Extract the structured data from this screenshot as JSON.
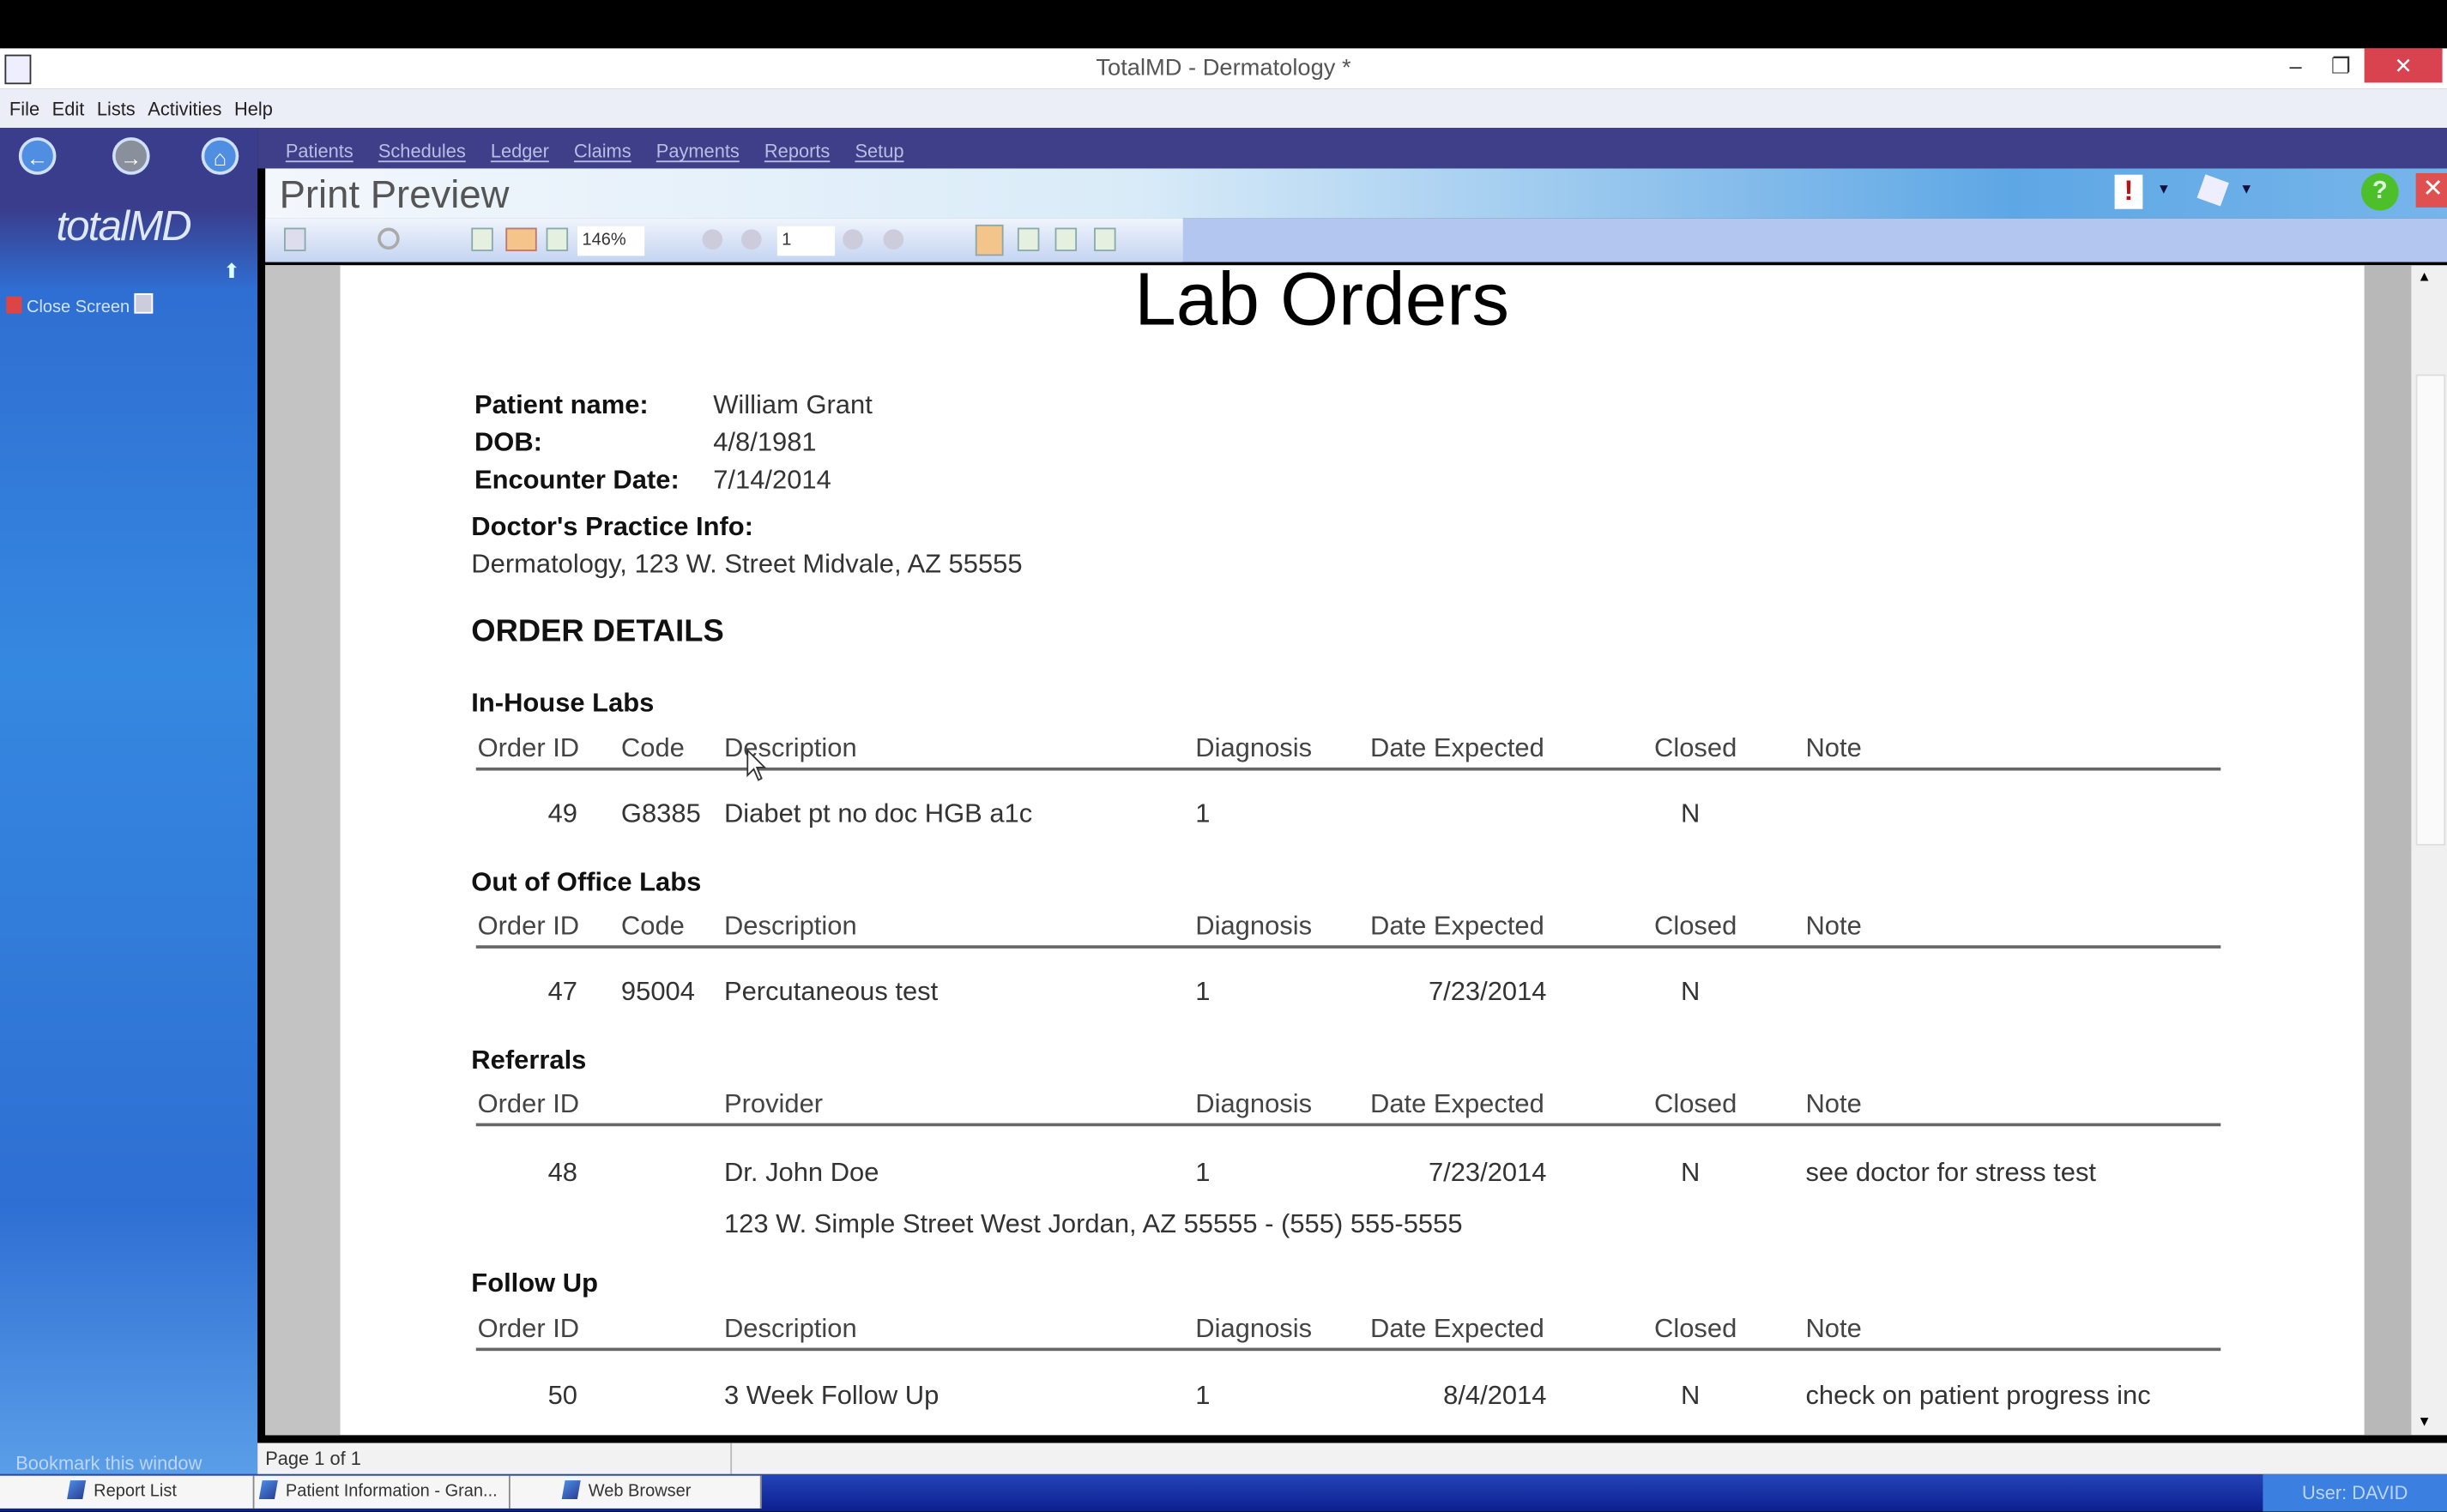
{
  "window": {
    "title": "TotalMD - Dermatology *",
    "minimize": "–",
    "restore": "❐",
    "close": "✕"
  },
  "menu": [
    "File",
    "Edit",
    "Lists",
    "Activities",
    "Help"
  ],
  "nav": [
    "Patients",
    "Schedules",
    "Ledger",
    "Claims",
    "Payments",
    "Reports",
    "Setup"
  ],
  "sidebar": {
    "logo": "totalMD",
    "close_screen": "Close Screen",
    "bookmark": "Bookmark this window"
  },
  "header": {
    "title": "Print Preview"
  },
  "toolbar": {
    "zoom": "146%",
    "page": "1"
  },
  "colors": {
    "nav": "#3e3f88",
    "close": "#d9434f",
    "help": "#4cbf2a"
  },
  "document": {
    "title": "Lab Orders",
    "patient_label": "Patient name:",
    "patient": "William Grant",
    "dob_label": "DOB:",
    "dob": "4/8/1981",
    "enc_label": "Encounter Date:",
    "enc": "7/14/2014",
    "practice_label": "Doctor's Practice Info:",
    "practice": "Dermatology, 123 W. Street  Midvale, AZ 55555",
    "order_details": "ORDER DETAILS",
    "inhouse": {
      "heading": "In-House Labs",
      "cols": [
        "Order ID",
        "Code",
        "Description",
        "Diagnosis",
        "Date Expected",
        "Closed",
        "Note"
      ],
      "rows": [
        {
          "id": "49",
          "code": "G8385",
          "desc": "Diabet pt no doc HGB a1c",
          "diag": "1",
          "date": "",
          "closed": "N",
          "note": ""
        }
      ]
    },
    "outoffice": {
      "heading": "Out of Office Labs",
      "cols": [
        "Order ID",
        "Code",
        "Description",
        "Diagnosis",
        "Date Expected",
        "Closed",
        "Note"
      ],
      "rows": [
        {
          "id": "47",
          "code": "95004",
          "desc": "Percutaneous test",
          "diag": "1",
          "date": "7/23/2014",
          "closed": "N",
          "note": ""
        }
      ]
    },
    "referrals": {
      "heading": "Referrals",
      "cols": [
        "Order ID",
        "Provider",
        "Diagnosis",
        "Date Expected",
        "Closed",
        "Note"
      ],
      "rows": [
        {
          "id": "48",
          "provider": "Dr. John Doe",
          "diag": "1",
          "date": "7/23/2014",
          "closed": "N",
          "note": "see doctor for stress test",
          "address": "123 W. Simple Street  West Jordan, AZ 55555 - (555) 555-5555"
        }
      ]
    },
    "followup": {
      "heading": "Follow Up",
      "cols": [
        "Order ID",
        "Description",
        "Diagnosis",
        "Date Expected",
        "Closed",
        "Note"
      ],
      "rows": [
        {
          "id": "50",
          "desc": "3 Week Follow Up",
          "diag": "1",
          "date": "8/4/2014",
          "closed": "N",
          "note": "check on patient progress inc"
        }
      ]
    }
  },
  "status": {
    "page": "Page 1 of 1"
  },
  "taskbar": {
    "items": [
      "Report List",
      "Patient Information - Gran...",
      "Web Browser"
    ],
    "user": "User: DAVID"
  }
}
